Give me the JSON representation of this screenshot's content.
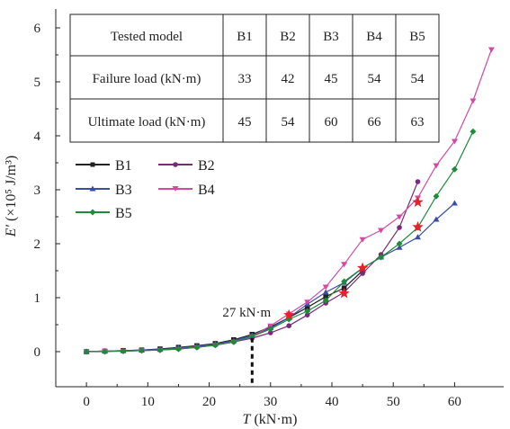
{
  "chart_data": {
    "type": "line",
    "xlabel_var": "T",
    "xlabel_unit": " (kN·m)",
    "ylabel_var": "E′",
    "ylabel_unit": " (×10⁵ J/m³)",
    "xlim": [
      -5,
      68
    ],
    "ylim": [
      -0.65,
      6.35
    ],
    "xticks": [
      0,
      10,
      20,
      30,
      40,
      50,
      60
    ],
    "yticks": [
      0,
      1,
      2,
      3,
      4,
      5,
      6
    ],
    "grid": false,
    "legend_position": "upper-left",
    "annotation": {
      "text": "27 kN·m",
      "x": 27,
      "y": 0.32
    },
    "table": {
      "headers": [
        "Tested model",
        "B1",
        "B2",
        "B3",
        "B4",
        "B5"
      ],
      "rows": [
        [
          "Failure load (kN·m)",
          "33",
          "42",
          "45",
          "54",
          "54"
        ],
        [
          "Ultimate load (kN·m)",
          "45",
          "54",
          "60",
          "66",
          "63"
        ]
      ]
    },
    "series": [
      {
        "name": "B1",
        "color": "#222222",
        "marker": "square",
        "x": [
          0,
          3,
          6,
          9,
          12,
          15,
          18,
          21,
          24,
          27,
          30,
          33,
          36,
          39,
          42,
          45
        ],
        "y": [
          0,
          0.01,
          0.02,
          0.03,
          0.05,
          0.08,
          0.11,
          0.15,
          0.22,
          0.32,
          0.46,
          0.63,
          0.82,
          1.02,
          1.18,
          1.5
        ]
      },
      {
        "name": "B2",
        "color": "#7a2a7a",
        "marker": "circle",
        "x": [
          0,
          3,
          6,
          9,
          12,
          15,
          18,
          21,
          24,
          27,
          30,
          33,
          36,
          39,
          42,
          45,
          48,
          51,
          54
        ],
        "y": [
          0,
          0.01,
          0.01,
          0.02,
          0.03,
          0.05,
          0.08,
          0.12,
          0.18,
          0.25,
          0.35,
          0.48,
          0.68,
          0.9,
          1.1,
          1.45,
          1.8,
          2.3,
          3.15
        ]
      },
      {
        "name": "B3",
        "color": "#3a4ea8",
        "marker": "triangle",
        "x": [
          0,
          3,
          6,
          9,
          12,
          15,
          18,
          21,
          24,
          27,
          30,
          33,
          36,
          39,
          42,
          45,
          48,
          51,
          54,
          57,
          60
        ],
        "y": [
          0,
          0.01,
          0.02,
          0.03,
          0.04,
          0.07,
          0.1,
          0.14,
          0.2,
          0.3,
          0.44,
          0.63,
          0.88,
          1.1,
          1.28,
          1.55,
          1.75,
          1.93,
          2.12,
          2.45,
          2.75
        ]
      },
      {
        "name": "B4",
        "color": "#d04aa6",
        "marker": "triangle-down",
        "x": [
          0,
          3,
          6,
          9,
          12,
          15,
          18,
          21,
          24,
          27,
          30,
          33,
          36,
          39,
          42,
          45,
          48,
          51,
          54,
          57,
          60,
          63,
          66
        ],
        "y": [
          0,
          0.01,
          0.01,
          0.02,
          0.03,
          0.05,
          0.08,
          0.12,
          0.18,
          0.28,
          0.48,
          0.7,
          0.92,
          1.2,
          1.62,
          2.08,
          2.25,
          2.5,
          2.85,
          3.45,
          3.9,
          4.65,
          5.6
        ]
      },
      {
        "name": "B5",
        "color": "#1f8a3a",
        "marker": "diamond",
        "x": [
          0,
          3,
          6,
          9,
          12,
          15,
          18,
          21,
          24,
          27,
          30,
          33,
          36,
          39,
          42,
          45,
          48,
          51,
          54,
          57,
          60,
          63
        ],
        "y": [
          0,
          0,
          0.01,
          0.02,
          0.03,
          0.05,
          0.08,
          0.12,
          0.18,
          0.28,
          0.42,
          0.6,
          0.75,
          0.95,
          1.3,
          1.55,
          1.75,
          2.0,
          2.3,
          2.88,
          3.38,
          4.08
        ]
      }
    ],
    "failure_markers": {
      "color": "#e8202a",
      "points": [
        {
          "model": "B1",
          "x": 33,
          "y": 0.68
        },
        {
          "model": "B2",
          "x": 42,
          "y": 1.08
        },
        {
          "model": "B3",
          "x": 45,
          "y": 1.55
        },
        {
          "model": "B4",
          "x": 54,
          "y": 2.77
        },
        {
          "model": "B5",
          "x": 54,
          "y": 2.31
        }
      ]
    }
  }
}
